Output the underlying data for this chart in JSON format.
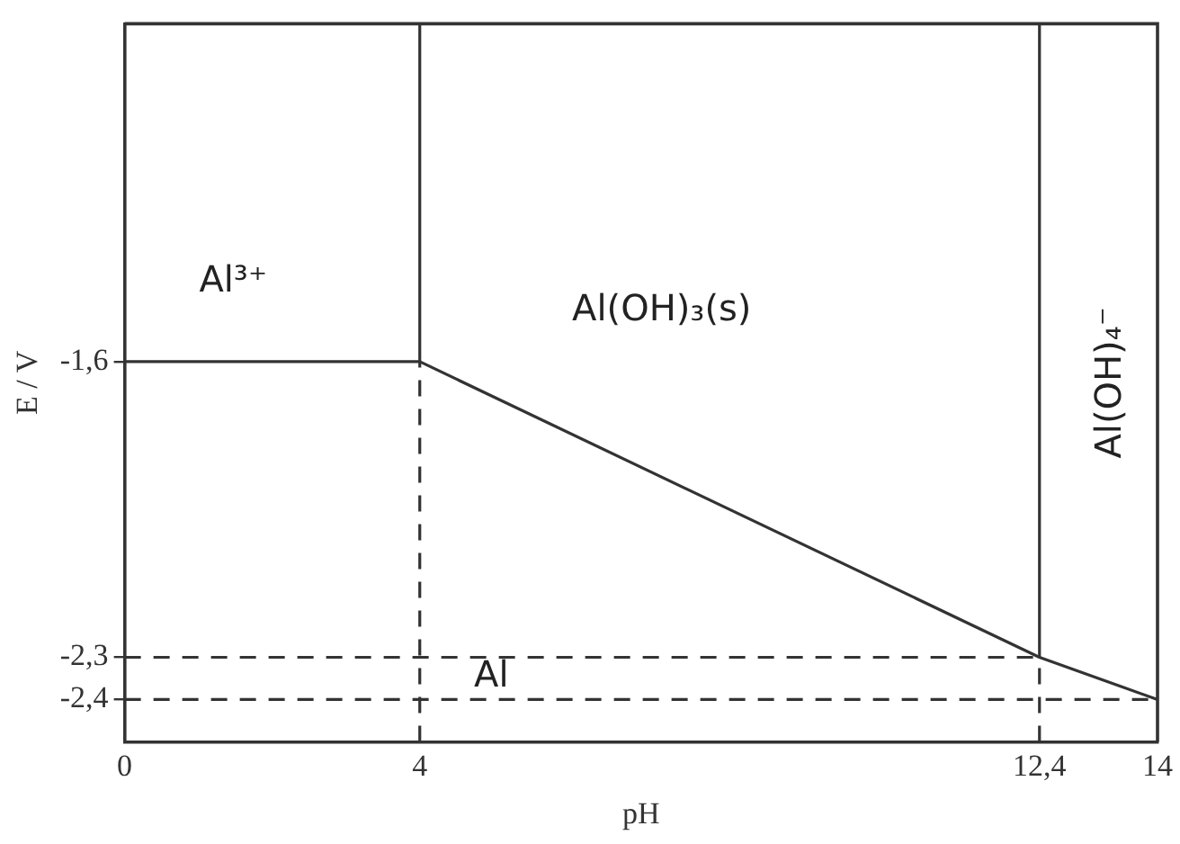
{
  "chart_data": {
    "type": "line",
    "xlabel": "pH",
    "ylabel": "E / V",
    "xlim": [
      0,
      14
    ],
    "xticks": [
      0,
      4,
      {
        "value": 12.4,
        "label": "12,4"
      },
      14
    ],
    "ylim": [
      -2.5,
      -0.8
    ],
    "yticks": [
      {
        "value": -1.6,
        "label": "-1,6"
      },
      {
        "value": -2.3,
        "label": "-2,3"
      },
      {
        "value": -2.4,
        "label": "-2,4"
      }
    ],
    "grid": false,
    "marker": "none",
    "series": [
      {
        "x": [
          0,
          4,
          12.4,
          14
        ],
        "values": [
          -1.6,
          -1.6,
          -2.3,
          -2.4
        ],
        "color": "#333333",
        "line_style": "solid"
      },
      {
        "x": [
          4,
          4
        ],
        "values": [
          -1.6,
          -0.8
        ],
        "color": "#333333",
        "line_style": "solid"
      },
      {
        "x": [
          12.4,
          12.4
        ],
        "values": [
          -2.3,
          -0.8
        ],
        "color": "#333333",
        "line_style": "solid"
      },
      {
        "x": [
          4,
          4
        ],
        "values": [
          -2.5,
          -1.6
        ],
        "color": "#333333",
        "line_style": "dashed"
      },
      {
        "x": [
          12.4,
          12.4
        ],
        "values": [
          -2.5,
          -2.3
        ],
        "color": "#333333",
        "line_style": "dashed"
      },
      {
        "x": [
          0,
          12.4
        ],
        "values": [
          -2.3,
          -2.3
        ],
        "color": "#333333",
        "line_style": "dashed"
      },
      {
        "x": [
          0,
          14
        ],
        "values": [
          -2.4,
          -2.4
        ],
        "color": "#333333",
        "line_style": "dashed"
      }
    ],
    "annotations": [
      "Al³⁺",
      "Al(OH)₃(s)",
      "Al(OH)₄⁻",
      "Al"
    ]
  }
}
